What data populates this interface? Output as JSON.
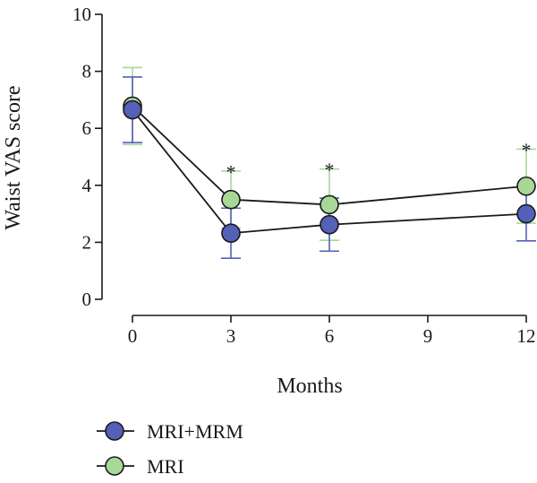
{
  "chart_data": {
    "type": "line",
    "title": "",
    "xlabel": "Months",
    "ylabel": "Waist VAS score",
    "x": [
      0,
      3,
      6,
      9,
      12
    ],
    "xticks": [
      "0",
      "3",
      "6",
      "9",
      "12"
    ],
    "yticks": [
      "0",
      "2",
      "4",
      "6",
      "8",
      "10"
    ],
    "xlim": [
      0,
      12
    ],
    "ylim": [
      0,
      10
    ],
    "grid": false,
    "legend_position": "bottom-left",
    "series": [
      {
        "name": "MRI+MRM",
        "color": "#5560b8",
        "x": [
          0,
          3,
          6,
          12
        ],
        "y": [
          6.65,
          2.32,
          2.62,
          3.0
        ],
        "err": [
          1.15,
          0.88,
          0.93,
          0.95
        ]
      },
      {
        "name": "MRI",
        "color": "#a8d898",
        "x": [
          0,
          3,
          6,
          12
        ],
        "y": [
          6.78,
          3.5,
          3.32,
          3.97
        ],
        "err": [
          1.35,
          1.0,
          1.25,
          1.3
        ]
      }
    ],
    "annotations": [
      {
        "x": 3,
        "y": 4.55,
        "text": "*"
      },
      {
        "x": 6,
        "y": 4.62,
        "text": "*"
      },
      {
        "x": 12,
        "y": 5.32,
        "text": "*"
      }
    ]
  }
}
